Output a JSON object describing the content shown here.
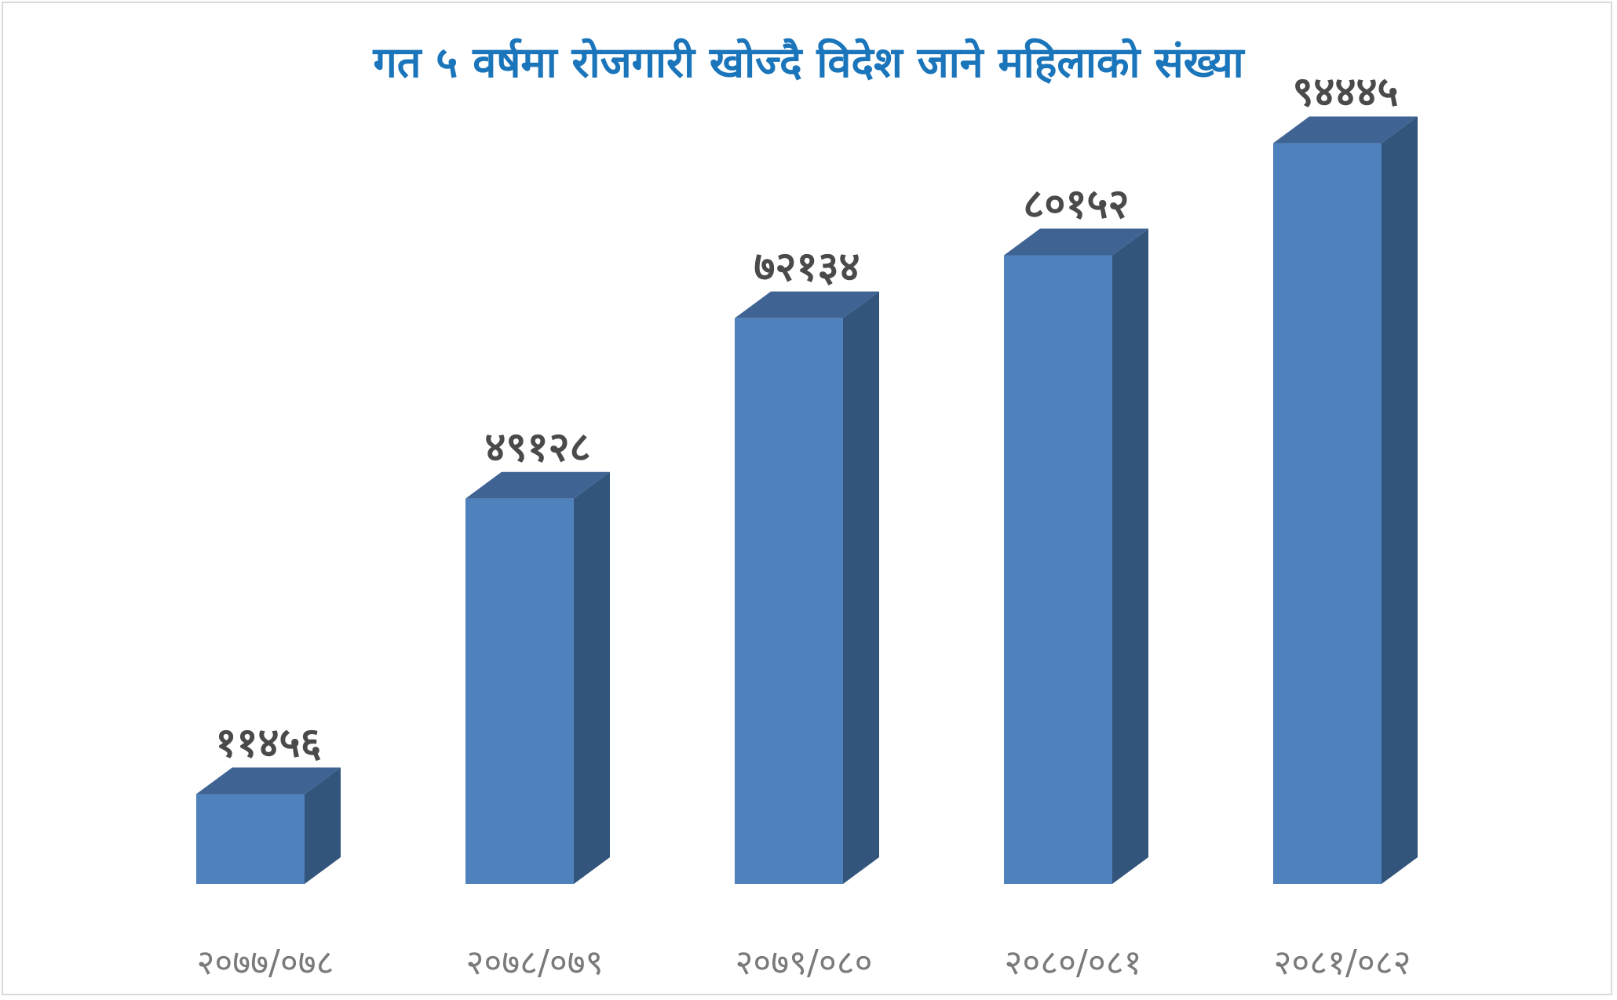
{
  "chart_data": {
    "type": "bar",
    "title": "गत ५ वर्षमा रोजगारी खोज्दै विदेश जाने महिलाको संख्या",
    "categories": [
      "२०७७/०७८",
      "२०७८/०७९",
      "२०७९/०८०",
      "२०८०/०८१",
      "२०८१/०८२"
    ],
    "values": [
      11456,
      49128,
      72134,
      80152,
      94445
    ],
    "value_labels": [
      "११४५६",
      "४९१२८",
      "७२१३४",
      "८०१५२",
      "९४४४५"
    ],
    "xlabel": "",
    "ylabel": "",
    "ylim": [
      0,
      100000
    ],
    "grid": false,
    "legend": "none",
    "colors": {
      "front": "#4f81bd",
      "top": "#3f6494",
      "side": "#33557c",
      "title": "#1b75bb"
    }
  }
}
